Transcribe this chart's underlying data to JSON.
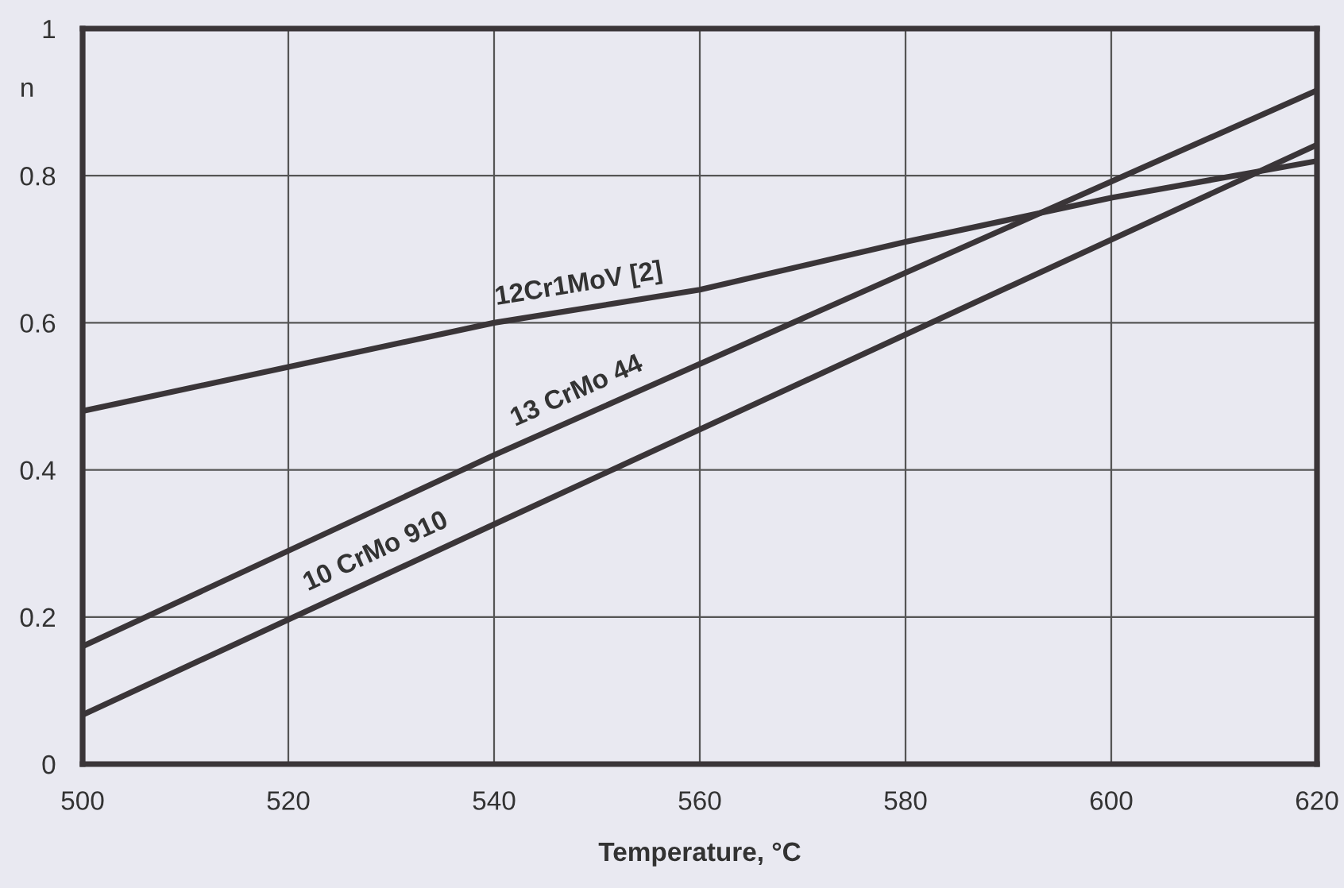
{
  "chart_data": {
    "type": "line",
    "xlabel": "Temperature, °C",
    "ylabel": "n",
    "xlim": [
      500,
      620
    ],
    "xticks": [
      500,
      520,
      540,
      560,
      580,
      600,
      620
    ],
    "ylim": [
      0,
      1
    ],
    "yticks": [
      0,
      0.2,
      0.4,
      0.6,
      0.8,
      1
    ],
    "grid": true,
    "marker": "none",
    "line_style": "solid",
    "series": [
      {
        "color": "#3a3538",
        "x": [
          500,
          520,
          540,
          560,
          580,
          600,
          620
        ],
        "values": [
          0.48,
          0.54,
          0.6,
          0.645,
          0.71,
          0.77,
          0.82
        ]
      },
      {
        "color": "#3a3538",
        "x": [
          500,
          540,
          620
        ],
        "values": [
          0.16,
          0.42,
          0.916
        ]
      },
      {
        "color": "#3a3538",
        "x": [
          500,
          540,
          620
        ],
        "values": [
          0.067,
          0.326,
          0.842
        ]
      }
    ],
    "annotations": [
      {
        "text": "12Cr1MoV [2]",
        "x": 548.6,
        "y": 0.619
      },
      {
        "text": "13 CrMo 44",
        "x": 549,
        "y": 0.476
      },
      {
        "text": "10 CrMo 910",
        "x": 529.5,
        "y": 0.258
      }
    ]
  }
}
